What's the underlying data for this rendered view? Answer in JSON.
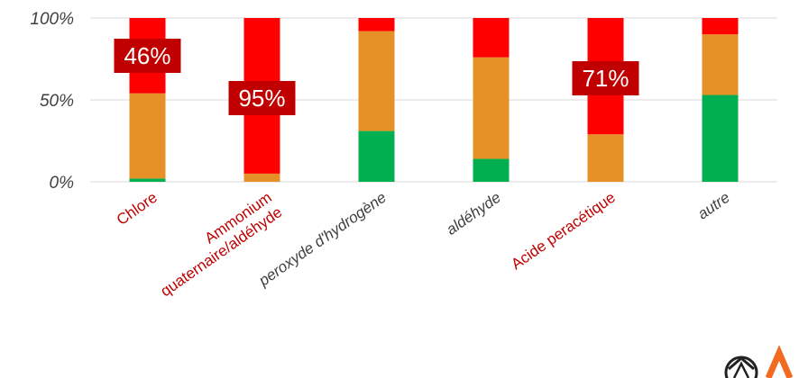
{
  "chart_data": {
    "type": "bar",
    "stacked": true,
    "title": "",
    "xlabel": "",
    "ylabel": "",
    "ylim": [
      0,
      100
    ],
    "yticks": [
      "0%",
      "50%",
      "100%"
    ],
    "grid": true,
    "categories": [
      "Chlore",
      "Ammonium quaternaire/aldéhyde",
      "peroxyde d'hydrogène",
      "aldéhyde",
      "Acide peracétique",
      "autre"
    ],
    "category_label_lines": [
      [
        "Chlore"
      ],
      [
        "Ammonium",
        "quaternaire/aldéhyde"
      ],
      [
        "peroxyde d'hydrogène"
      ],
      [
        "aldéhyde"
      ],
      [
        "Acide peracétique"
      ],
      [
        "autre"
      ]
    ],
    "highlighted_categories": [
      "Chlore",
      "Ammonium quaternaire/aldéhyde",
      "Acide peracétique"
    ],
    "series": [
      {
        "color": "#00b050",
        "values": [
          2,
          0,
          31,
          14,
          0,
          53
        ]
      },
      {
        "color": "#e69127",
        "values": [
          52,
          5,
          61,
          62,
          29,
          37
        ]
      },
      {
        "color": "#ff0000",
        "values": [
          46,
          95,
          8,
          24,
          71,
          10
        ]
      }
    ],
    "data_labels": [
      {
        "category": "Chlore",
        "text": "46%"
      },
      {
        "category": "Ammonium quaternaire/aldéhyde",
        "text": "95%"
      },
      {
        "category": "Acide peracétique",
        "text": "71%"
      }
    ],
    "colors": {
      "highlight_label": "#c00000",
      "normal_label": "#404040",
      "data_label_bg": "#c00000",
      "gridline": "#d9d9d9"
    }
  },
  "logo": {
    "icon": "tractor-wheel-logo-icon",
    "color": "#f26b21"
  }
}
